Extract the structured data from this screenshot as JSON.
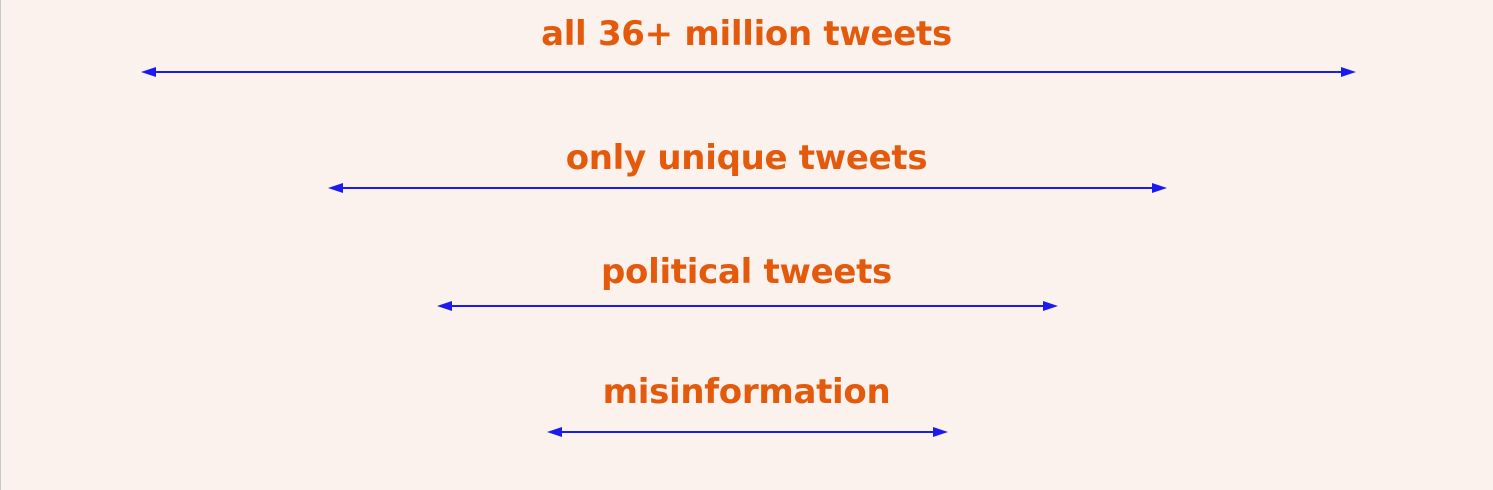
{
  "colors": {
    "background": "#fbf1ed",
    "label": "#e35a0c",
    "arrow": "#1b1bf0"
  },
  "layers": [
    {
      "label": "all 36+ million tweets"
    },
    {
      "label": "only unique tweets"
    },
    {
      "label": "political tweets"
    },
    {
      "label": "misinformation"
    }
  ]
}
